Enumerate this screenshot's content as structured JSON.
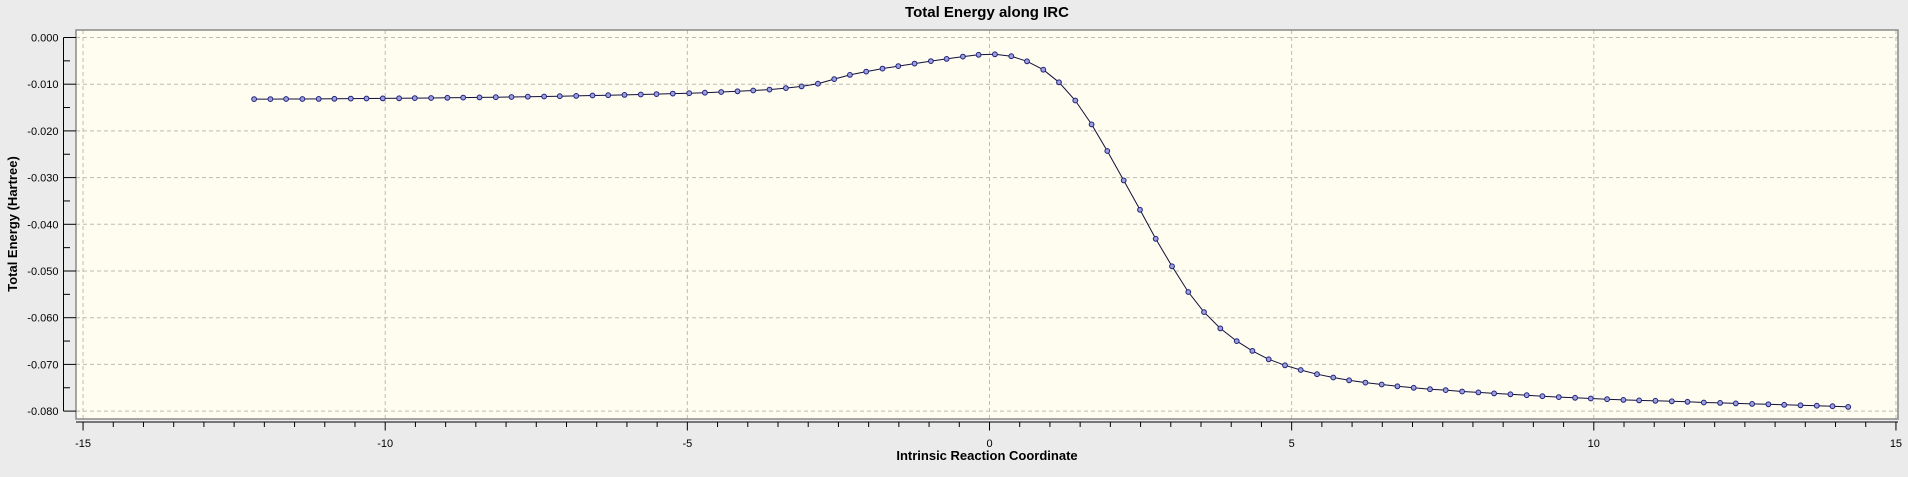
{
  "window": {
    "background_color": "#ebebeb"
  },
  "chart_data": {
    "type": "line",
    "title": "Total Energy along IRC",
    "xlabel": "Intrinsic Reaction Coordinate",
    "ylabel": "Total Energy (Hartree)",
    "xlim": [
      -15,
      15
    ],
    "ylim": [
      -0.08,
      0.0
    ],
    "x_major_ticks": [
      -15,
      -10,
      -5,
      0,
      5,
      10,
      15
    ],
    "x_tick_labels": [
      "-15",
      "-10",
      "-5",
      "0",
      "5",
      "10",
      "15"
    ],
    "x_minor_step": 0.5,
    "y_major_ticks": [
      0.0,
      -0.01,
      -0.02,
      -0.03,
      -0.04,
      -0.05,
      -0.06,
      -0.07,
      -0.08
    ],
    "y_tick_labels": [
      "0.000",
      "-0.010",
      "-0.020",
      "-0.030",
      "-0.040",
      "-0.050",
      "-0.060",
      "-0.070",
      "-0.080"
    ],
    "y_minor_step": 0.005,
    "grid": "dashed gray lines at major ticks, both axes",
    "legend_position": "none",
    "plot_background": "#fffcf0",
    "line_color": "#10103a",
    "marker_shape": "circle",
    "marker_fill": "#9aa1dc",
    "marker_stroke": "#21217a",
    "grid_color": "#bdbdb4",
    "frame_color": "#8a8a8a",
    "series": [
      {
        "name": "Total Energy",
        "x": [
          -12.17,
          -11.9,
          -11.64,
          -11.37,
          -11.1,
          -10.84,
          -10.57,
          -10.31,
          -10.04,
          -9.77,
          -9.51,
          -9.24,
          -8.97,
          -8.71,
          -8.44,
          -8.17,
          -7.91,
          -7.64,
          -7.37,
          -7.11,
          -6.84,
          -6.57,
          -6.31,
          -6.04,
          -5.77,
          -5.51,
          -5.24,
          -4.97,
          -4.71,
          -4.44,
          -4.17,
          -3.91,
          -3.64,
          -3.37,
          -3.11,
          -2.84,
          -2.57,
          -2.31,
          -2.04,
          -1.77,
          -1.51,
          -1.24,
          -0.97,
          -0.71,
          -0.44,
          -0.18,
          0.09,
          0.36,
          0.62,
          0.89,
          1.15,
          1.42,
          1.69,
          1.95,
          2.22,
          2.49,
          2.75,
          3.02,
          3.29,
          3.55,
          3.82,
          4.09,
          4.35,
          4.62,
          4.89,
          5.15,
          5.42,
          5.69,
          5.95,
          6.22,
          6.49,
          6.75,
          7.02,
          7.29,
          7.55,
          7.82,
          8.09,
          8.35,
          8.62,
          8.89,
          9.15,
          9.42,
          9.69,
          9.95,
          10.22,
          10.49,
          10.75,
          11.02,
          11.29,
          11.55,
          11.82,
          12.09,
          12.35,
          12.62,
          12.89,
          13.15,
          13.42,
          13.69,
          13.95,
          14.21
        ],
        "y": [
          -0.0132,
          -0.01318,
          -0.01317,
          -0.01316,
          -0.01314,
          -0.01312,
          -0.01309,
          -0.01307,
          -0.01304,
          -0.01301,
          -0.01298,
          -0.01295,
          -0.01291,
          -0.01287,
          -0.01283,
          -0.01279,
          -0.01274,
          -0.01268,
          -0.01263,
          -0.01257,
          -0.0125,
          -0.01243,
          -0.01236,
          -0.01229,
          -0.0122,
          -0.01211,
          -0.01201,
          -0.01192,
          -0.01181,
          -0.01167,
          -0.01152,
          -0.01135,
          -0.01115,
          -0.01083,
          -0.01048,
          -0.0099,
          -0.0089,
          -0.008,
          -0.0073,
          -0.00665,
          -0.00613,
          -0.00558,
          -0.00505,
          -0.00458,
          -0.0041,
          -0.0037,
          -0.0036,
          -0.004,
          -0.0051,
          -0.0069,
          -0.0096,
          -0.0135,
          -0.0186,
          -0.0243,
          -0.0306,
          -0.0369,
          -0.0431,
          -0.049,
          -0.0545,
          -0.0588,
          -0.0623,
          -0.065,
          -0.0671,
          -0.0689,
          -0.0702,
          -0.0712,
          -0.0721,
          -0.0728,
          -0.0734,
          -0.0739,
          -0.0743,
          -0.0747,
          -0.075,
          -0.0753,
          -0.0755,
          -0.0758,
          -0.076,
          -0.0762,
          -0.0764,
          -0.0766,
          -0.0768,
          -0.077,
          -0.07715,
          -0.0773,
          -0.07745,
          -0.0776,
          -0.0777,
          -0.0778,
          -0.0779,
          -0.078,
          -0.07815,
          -0.07825,
          -0.07835,
          -0.07845,
          -0.07855,
          -0.07865,
          -0.07875,
          -0.07885,
          -0.07895,
          -0.0791
        ]
      }
    ]
  }
}
